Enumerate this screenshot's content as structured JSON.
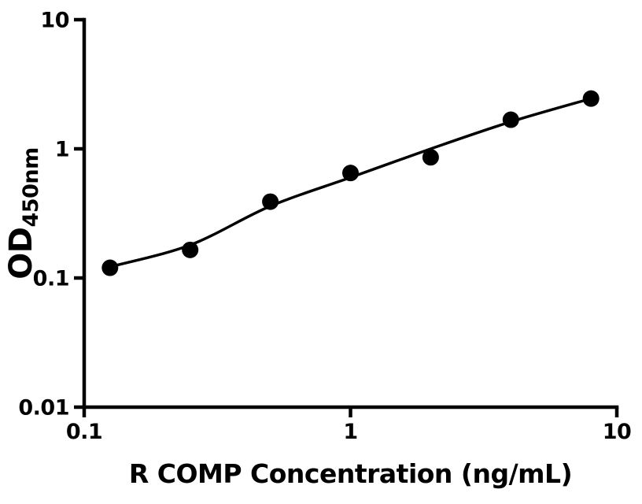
{
  "colors": {
    "ink": "#000000",
    "paper": "#ffffff"
  },
  "chart_data": {
    "type": "scatter",
    "title": "",
    "xlabel": "R COMP Concentration (ng/mL)",
    "ylabel": "OD450nm",
    "ylabel_main": "OD",
    "ylabel_sub": "450nm",
    "x_scale": "log",
    "y_scale": "log",
    "xlim": [
      0.1,
      10
    ],
    "ylim": [
      0.01,
      10
    ],
    "grid": false,
    "legend": "none",
    "x_ticks": [
      {
        "value": 0.1,
        "label": "0.1"
      },
      {
        "value": 1,
        "label": "1"
      },
      {
        "value": 10,
        "label": "10"
      }
    ],
    "y_ticks": [
      {
        "value": 0.01,
        "label": "0.01"
      },
      {
        "value": 0.1,
        "label": "0.1"
      },
      {
        "value": 1,
        "label": "1"
      },
      {
        "value": 10,
        "label": "10"
      }
    ],
    "series": [
      {
        "name": "standard-data-points",
        "type": "scatter",
        "marker": "filled-circle",
        "marker_radius": 10.5,
        "color": "#000000",
        "points": [
          [
            0.125,
            0.12
          ],
          [
            0.25,
            0.165
          ],
          [
            0.5,
            0.39
          ],
          [
            1,
            0.65
          ],
          [
            2,
            0.86
          ],
          [
            4,
            1.68
          ],
          [
            8,
            2.45
          ]
        ]
      },
      {
        "name": "fit-curve",
        "type": "line",
        "line_width": 3.5,
        "color": "#000000",
        "points": [
          [
            0.125,
            0.122
          ],
          [
            0.25,
            0.18
          ],
          [
            0.5,
            0.36
          ],
          [
            1,
            0.6
          ],
          [
            2,
            1.0
          ],
          [
            4,
            1.62
          ],
          [
            8,
            2.45
          ]
        ]
      }
    ]
  }
}
